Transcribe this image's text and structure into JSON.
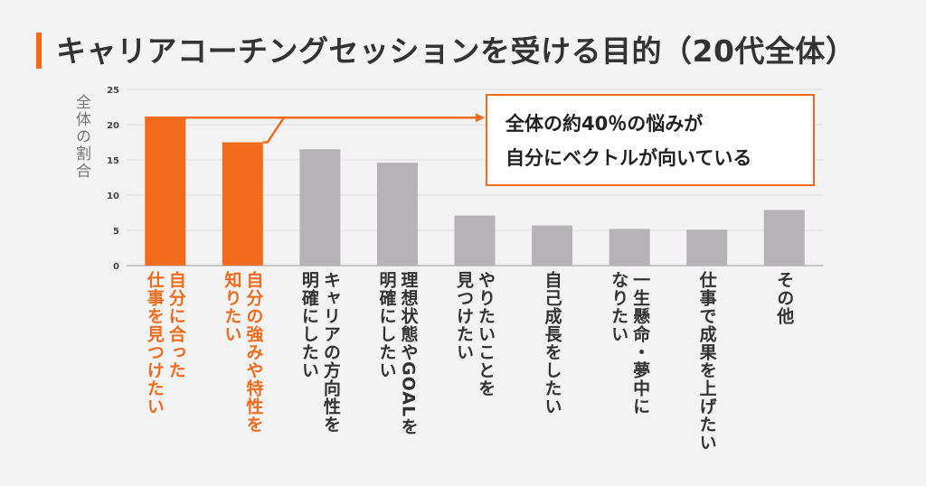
{
  "title": "キャリアコーチングセッションを受ける目的（20代全体）",
  "y_axis_label": "全体の割合",
  "callout": {
    "line1": "全体の約40％の悩みが",
    "line2": "自分にベクトルが向いている"
  },
  "colors": {
    "accent": "#f26b1d",
    "bar_highlight": "#f26b1d",
    "bar_default": "#b5b3b6",
    "text_dark": "#333333",
    "highlight_label": "#f26b1d"
  },
  "chart_data": {
    "type": "bar",
    "title": "キャリアコーチングセッションを受ける目的（20代全体）",
    "ylabel": "全体の割合",
    "ylim": [
      0,
      25
    ],
    "yticks": [
      0,
      5,
      10,
      15,
      20,
      25
    ],
    "grid": true,
    "categories": [
      [
        "自分に合った",
        "仕事を見つけたい"
      ],
      [
        "自分の強みや特性を",
        "知りたい"
      ],
      [
        "キャリアの方向性を",
        "明確にしたい"
      ],
      [
        "理想状態やGOALを",
        "明確にしたい"
      ],
      [
        "やりたいことを",
        "見つけたい"
      ],
      [
        "自己成長をしたい"
      ],
      [
        "一生懸命・夢中に",
        "なりたい"
      ],
      [
        "仕事で成果を上げたい"
      ],
      [
        "その他"
      ]
    ],
    "values": [
      21,
      17.5,
      16.5,
      14.6,
      7.1,
      5.7,
      5.2,
      5.1,
      7.9
    ],
    "highlighted": [
      true,
      true,
      false,
      false,
      false,
      false,
      false,
      false,
      false
    ]
  }
}
